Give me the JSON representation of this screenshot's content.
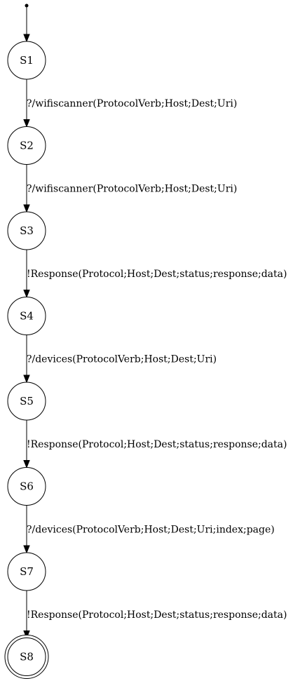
{
  "states": [
    {
      "id": "S1",
      "label": "S1",
      "final": false
    },
    {
      "id": "S2",
      "label": "S2",
      "final": false
    },
    {
      "id": "S3",
      "label": "S3",
      "final": false
    },
    {
      "id": "S4",
      "label": "S4",
      "final": false
    },
    {
      "id": "S5",
      "label": "S5",
      "final": false
    },
    {
      "id": "S6",
      "label": "S6",
      "final": false
    },
    {
      "id": "S7",
      "label": "S7",
      "final": false
    },
    {
      "id": "S8",
      "label": "S8",
      "final": true
    }
  ],
  "initial_state": "S1",
  "transitions": [
    {
      "from": "S1",
      "to": "S2",
      "label": "?/wifiscanner(ProtocolVerb;Host;Dest;Uri)"
    },
    {
      "from": "S2",
      "to": "S3",
      "label": "?/wifiscanner(ProtocolVerb;Host;Dest;Uri)"
    },
    {
      "from": "S3",
      "to": "S4",
      "label": "!Response(Protocol;Host;Dest;status;response;data)"
    },
    {
      "from": "S4",
      "to": "S5",
      "label": "?/devices(ProtocolVerb;Host;Dest;Uri)"
    },
    {
      "from": "S5",
      "to": "S6",
      "label": "!Response(Protocol;Host;Dest;status;response;data)"
    },
    {
      "from": "S6",
      "to": "S7",
      "label": "?/devices(ProtocolVerb;Host;Dest;Uri;index;page)"
    },
    {
      "from": "S7",
      "to": "S8",
      "label": "!Response(Protocol;Host;Dest;status;response;data)"
    }
  ]
}
